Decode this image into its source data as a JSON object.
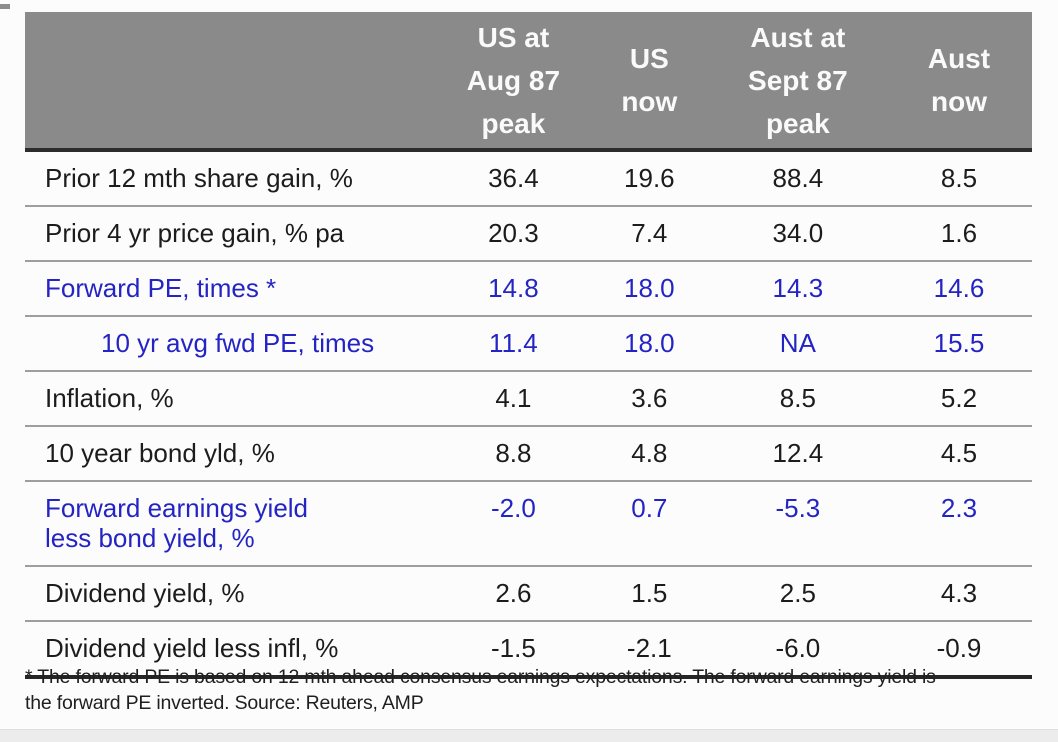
{
  "colors": {
    "header_gray": "#8a8a8a",
    "accent_blue": "#2424c4",
    "text_black": "#1c1c1c",
    "separator_gray": "#9e9e9e",
    "thick_rule_dark": "#262626",
    "bottom_strip": "#ececec"
  },
  "table": {
    "header": {
      "columns": [
        {
          "l1": "US at",
          "l2": "Aug 87",
          "l3": "peak"
        },
        {
          "l1": "US",
          "l2": "now",
          "l3": ""
        },
        {
          "l1": "Aust at",
          "l2": "Sept 87",
          "l3": "peak"
        },
        {
          "l1": "Aust",
          "l2": "now",
          "l3": ""
        }
      ]
    },
    "rows": [
      {
        "label": "Prior 12 mth share gain, %",
        "values": [
          "36.4",
          "19.6",
          "88.4",
          "8.5"
        ]
      },
      {
        "label": "Prior 4 yr price gain, % pa",
        "values": [
          "20.3",
          "7.4",
          "34.0",
          "1.6"
        ]
      },
      {
        "label": "Forward PE, times *",
        "values": [
          "14.8",
          "18.0",
          "14.3",
          "14.6"
        ]
      },
      {
        "label": "10 yr avg fwd PE, times",
        "values": [
          "11.4",
          "18.0",
          "NA",
          "15.5"
        ]
      },
      {
        "label": "Inflation, %",
        "values": [
          "4.1",
          "3.6",
          "8.5",
          "5.2"
        ]
      },
      {
        "label": "10 year bond yld, %",
        "values": [
          "8.8",
          "4.8",
          "12.4",
          "4.5"
        ]
      },
      {
        "label": "Forward earnings yield",
        "label2": "less bond yield, %",
        "values": [
          "-2.0",
          "0.7",
          "-5.3",
          "2.3"
        ]
      },
      {
        "label": "Dividend yield, %",
        "values": [
          "2.6",
          "1.5",
          "2.5",
          "4.3"
        ]
      },
      {
        "label": "Dividend yield less infl, %",
        "values": [
          "-1.5",
          "-2.1",
          "-6.0",
          "-0.9"
        ]
      }
    ],
    "footnote": "* The forward PE is based on 12 mth ahead consensus earnings expectations. The forward earnings yield is the forward PE inverted. Source: Reuters, AMP"
  }
}
